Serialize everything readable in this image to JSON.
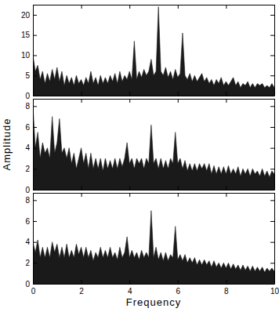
{
  "chart_data": [
    {
      "type": "area",
      "color": "#1a1a1a",
      "xlim": [
        0,
        10
      ],
      "ylim": [
        0,
        22.5
      ],
      "xticks": [
        0,
        2,
        4,
        6,
        8,
        10
      ],
      "yticks": [
        0,
        5,
        10,
        15,
        20
      ],
      "tick_labels": "y",
      "x": [
        0,
        0.1,
        0.2,
        0.3,
        0.4,
        0.5,
        0.6,
        0.7,
        0.8,
        0.9,
        1,
        1.1,
        1.2,
        1.3,
        1.4,
        1.5,
        1.6,
        1.7,
        1.8,
        1.9,
        2,
        2.1,
        2.2,
        2.3,
        2.4,
        2.5,
        2.6,
        2.7,
        2.8,
        2.9,
        3,
        3.1,
        3.2,
        3.3,
        3.4,
        3.5,
        3.6,
        3.7,
        3.8,
        3.9,
        4,
        4.1,
        4.2,
        4.3,
        4.4,
        4.5,
        4.6,
        4.7,
        4.8,
        4.9,
        5,
        5.1,
        5.2,
        5.3,
        5.4,
        5.5,
        5.6,
        5.7,
        5.8,
        5.9,
        6,
        6.1,
        6.2,
        6.3,
        6.4,
        6.5,
        6.6,
        6.7,
        6.8,
        6.9,
        7,
        7.1,
        7.2,
        7.3,
        7.4,
        7.5,
        7.6,
        7.7,
        7.8,
        7.9,
        8,
        8.1,
        8.2,
        8.3,
        8.4,
        8.5,
        8.6,
        8.7,
        8.8,
        8.9,
        9,
        9.1,
        9.2,
        9.3,
        9.4,
        9.5,
        9.6,
        9.7,
        9.8,
        9.9,
        10
      ],
      "values": [
        10,
        6,
        7.5,
        4,
        6,
        3,
        5.5,
        3.5,
        6.5,
        4,
        7,
        3.5,
        6,
        2.5,
        5,
        3,
        4.5,
        2.5,
        5,
        3,
        4,
        2.5,
        4.5,
        3,
        6,
        3,
        4.5,
        2.5,
        5,
        3,
        4.5,
        3,
        5,
        3.5,
        5.5,
        3,
        6,
        3.5,
        5,
        4,
        6,
        4,
        13.5,
        4,
        6,
        4.5,
        6.5,
        5,
        6,
        9,
        5,
        6,
        22,
        6,
        5,
        7,
        4.5,
        6,
        4,
        6.5,
        4.5,
        5.5,
        15.5,
        5,
        4,
        5.5,
        3.5,
        5,
        3.5,
        4.5,
        5.5,
        3.5,
        4.5,
        3,
        4,
        2.5,
        4,
        3,
        4.5,
        2.5,
        3.5,
        2.5,
        3.5,
        4.5,
        2.5,
        3.5,
        2,
        3,
        2.5,
        3.5,
        2,
        3,
        2,
        3,
        2.5,
        3,
        2,
        2.5,
        2,
        3,
        2
      ]
    },
    {
      "type": "area",
      "color": "#1a1a1a",
      "xlim": [
        0,
        10
      ],
      "ylim": [
        0,
        8.7
      ],
      "xticks": [
        0,
        2,
        4,
        6,
        8,
        10
      ],
      "yticks": [
        0,
        2,
        4,
        6,
        8
      ],
      "tick_labels": "y",
      "y_label": "Amplitude",
      "x": [
        0,
        0.1,
        0.2,
        0.3,
        0.4,
        0.5,
        0.6,
        0.7,
        0.8,
        0.9,
        1,
        1.1,
        1.2,
        1.3,
        1.4,
        1.5,
        1.6,
        1.7,
        1.8,
        1.9,
        2,
        2.1,
        2.2,
        2.3,
        2.4,
        2.5,
        2.6,
        2.7,
        2.8,
        2.9,
        3,
        3.1,
        3.2,
        3.3,
        3.4,
        3.5,
        3.6,
        3.7,
        3.8,
        3.9,
        4,
        4.1,
        4.2,
        4.3,
        4.4,
        4.5,
        4.6,
        4.7,
        4.8,
        4.9,
        5,
        5.1,
        5.2,
        5.3,
        5.4,
        5.5,
        5.6,
        5.7,
        5.8,
        5.9,
        6,
        6.1,
        6.2,
        6.3,
        6.4,
        6.5,
        6.6,
        6.7,
        6.8,
        6.9,
        7,
        7.1,
        7.2,
        7.3,
        7.4,
        7.5,
        7.6,
        7.7,
        7.8,
        7.9,
        8,
        8.1,
        8.2,
        8.3,
        8.4,
        8.5,
        8.6,
        8.7,
        8.8,
        8.9,
        9,
        9.1,
        9.2,
        9.3,
        9.4,
        9.5,
        9.6,
        9.7,
        9.8,
        9.9,
        10
      ],
      "values": [
        8,
        4,
        5.5,
        3,
        4.5,
        3.5,
        4,
        3,
        7,
        3.5,
        4.5,
        6.8,
        3.5,
        4,
        3,
        4,
        2.5,
        3.5,
        2,
        3,
        4,
        2.5,
        3.5,
        2,
        3.5,
        2,
        3,
        2,
        3,
        1.8,
        3,
        2,
        2.8,
        2,
        3,
        2,
        3,
        2.2,
        3,
        4.5,
        2.5,
        3,
        2,
        3,
        2.5,
        3,
        2,
        3,
        2.5,
        6.2,
        2.5,
        3,
        2,
        3,
        2,
        2.8,
        2,
        3,
        2.5,
        5.5,
        2.5,
        3,
        2,
        2.8,
        1.8,
        2.5,
        1.8,
        2.5,
        1.8,
        2.5,
        2,
        2.5,
        1.8,
        2.5,
        1.5,
        2.3,
        1.5,
        2.2,
        1.5,
        2.2,
        1.5,
        2.3,
        1.5,
        2,
        1.5,
        2.2,
        1.3,
        2,
        1.5,
        2,
        1.3,
        2,
        1.5,
        1.8,
        1.3,
        2,
        1.3,
        1.8,
        1.2,
        1.8,
        1.5
      ]
    },
    {
      "type": "area",
      "color": "#1a1a1a",
      "xlim": [
        0,
        10
      ],
      "ylim": [
        0,
        8.7
      ],
      "xticks": [
        0,
        2,
        4,
        6,
        8,
        10
      ],
      "yticks": [
        0,
        2,
        4,
        6,
        8
      ],
      "x_label": "Frequency",
      "x": [
        0,
        0.1,
        0.2,
        0.3,
        0.4,
        0.5,
        0.6,
        0.7,
        0.8,
        0.9,
        1,
        1.1,
        1.2,
        1.3,
        1.4,
        1.5,
        1.6,
        1.7,
        1.8,
        1.9,
        2,
        2.1,
        2.2,
        2.3,
        2.4,
        2.5,
        2.6,
        2.7,
        2.8,
        2.9,
        3,
        3.1,
        3.2,
        3.3,
        3.4,
        3.5,
        3.6,
        3.7,
        3.8,
        3.9,
        4,
        4.1,
        4.2,
        4.3,
        4.4,
        4.5,
        4.6,
        4.7,
        4.8,
        4.9,
        5,
        5.1,
        5.2,
        5.3,
        5.4,
        5.5,
        5.6,
        5.7,
        5.8,
        5.9,
        6,
        6.1,
        6.2,
        6.3,
        6.4,
        6.5,
        6.6,
        6.7,
        6.8,
        6.9,
        7,
        7.1,
        7.2,
        7.3,
        7.4,
        7.5,
        7.6,
        7.7,
        7.8,
        7.9,
        8,
        8.1,
        8.2,
        8.3,
        8.4,
        8.5,
        8.6,
        8.7,
        8.8,
        8.9,
        9,
        9.1,
        9.2,
        9.3,
        9.4,
        9.5,
        9.6,
        9.7,
        9.8,
        9.9,
        10
      ],
      "values": [
        4,
        3,
        4.2,
        2.5,
        3.5,
        2.5,
        3.5,
        2.5,
        4,
        3,
        3.8,
        2.5,
        3.5,
        2.5,
        3.8,
        2.5,
        3.2,
        2.5,
        3.8,
        2.8,
        3.5,
        2.5,
        3.5,
        2.5,
        3.2,
        2.2,
        3,
        2.5,
        3.5,
        2.5,
        3.2,
        2.5,
        3.5,
        2.5,
        3,
        2.3,
        3.5,
        2.5,
        3,
        4.5,
        2.5,
        3.2,
        2.5,
        3,
        2.3,
        3.2,
        2.5,
        3,
        2.5,
        7,
        2.5,
        3.5,
        2.3,
        3,
        2.2,
        3,
        2.2,
        2.8,
        2.5,
        5.5,
        2.3,
        2.8,
        2.2,
        2.8,
        2,
        2.5,
        2,
        2.5,
        1.8,
        2.3,
        1.8,
        2.3,
        1.8,
        2.2,
        1.6,
        2.2,
        1.6,
        2,
        1.5,
        2,
        1.5,
        2,
        1.4,
        1.9,
        1.4,
        1.8,
        1.3,
        1.8,
        1.3,
        1.7,
        1.2,
        1.7,
        1.2,
        1.6,
        1.2,
        1.6,
        1.1,
        1.5,
        1.2,
        1.5,
        1.2
      ]
    }
  ]
}
